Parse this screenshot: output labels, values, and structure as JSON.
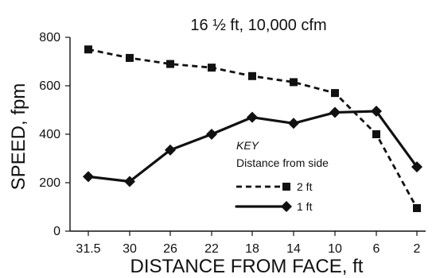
{
  "chart_data": {
    "type": "line",
    "title": "16 ½ ft, 10,000 cfm",
    "xlabel": "DISTANCE FROM FACE, ft",
    "ylabel": "SPEED, fpm",
    "categories": [
      "31.5",
      "30",
      "26",
      "22",
      "18",
      "14",
      "10",
      "6",
      "2"
    ],
    "ylim": [
      0,
      800
    ],
    "yticks": [
      0,
      200,
      400,
      600,
      800
    ],
    "grid": false,
    "legend": {
      "placement": "center-right",
      "key_label": "KEY",
      "subtitle": "Distance from side"
    },
    "series": [
      {
        "name": "2 ft",
        "line_style": "dashed",
        "marker": "square",
        "values": [
          750,
          715,
          690,
          675,
          640,
          615,
          570,
          400,
          95
        ]
      },
      {
        "name": "1 ft",
        "line_style": "solid",
        "marker": "diamond",
        "values": [
          225,
          205,
          335,
          400,
          470,
          445,
          490,
          495,
          265
        ]
      }
    ]
  }
}
